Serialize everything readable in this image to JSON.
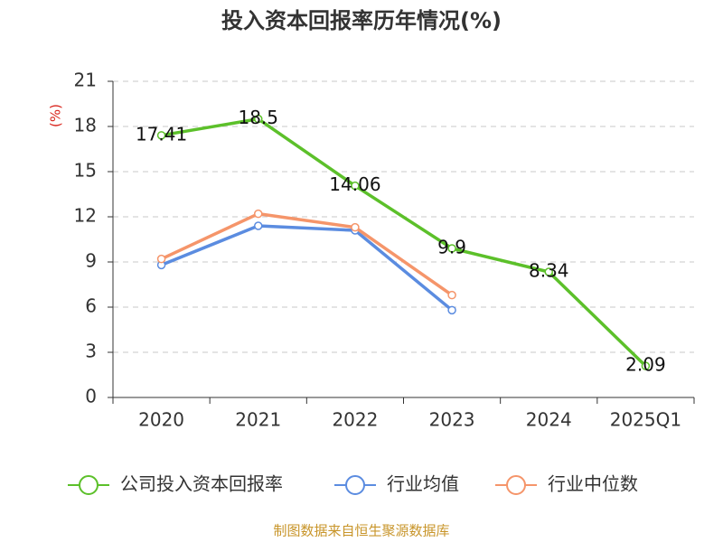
{
  "chart_data": {
    "type": "line",
    "title": "投入资本回报率历年情况(%)",
    "y_label": "(%)",
    "categories": [
      "2020",
      "2021",
      "2022",
      "2023",
      "2024",
      "2025Q1"
    ],
    "series": [
      {
        "name": "公司投入资本回报率",
        "color": "#5cc02a",
        "values": [
          17.41,
          18.5,
          14.06,
          9.9,
          8.34,
          2.09
        ],
        "data_labels": true
      },
      {
        "name": "行业均值",
        "color": "#5b8ce0",
        "values": [
          8.8,
          11.4,
          11.1,
          5.8,
          null,
          null
        ],
        "data_labels": false
      },
      {
        "name": "行业中位数",
        "color": "#f5956a",
        "values": [
          9.2,
          12.2,
          11.3,
          6.8,
          null,
          null
        ],
        "data_labels": false
      }
    ],
    "ylim": [
      0,
      21
    ],
    "yticks": [
      0,
      3,
      6,
      9,
      12,
      15,
      18,
      21
    ],
    "grid": true,
    "legend": "bottom",
    "source": "制图数据来自恒生聚源数据库"
  }
}
